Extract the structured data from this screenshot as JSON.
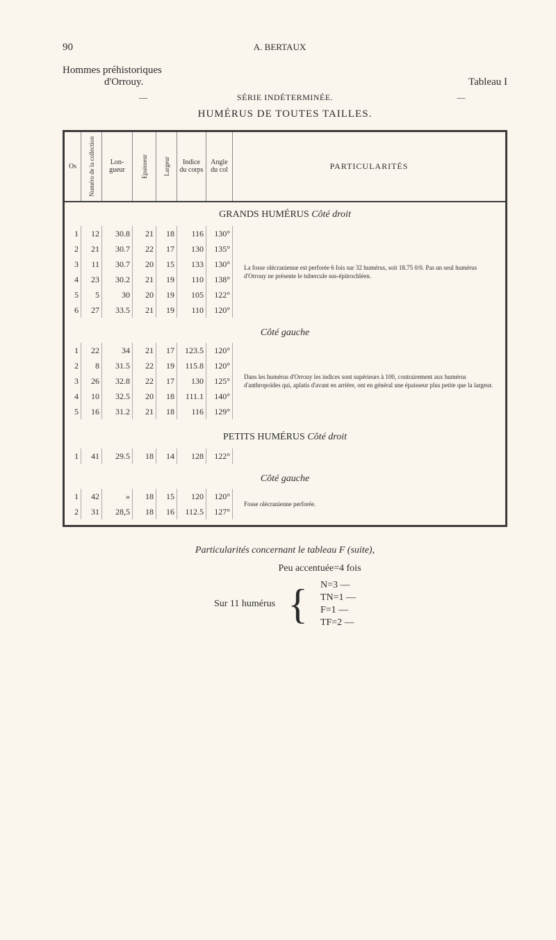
{
  "page_number": "90",
  "author": "A. BERTAUX",
  "title_group": "Hommes préhistoriques",
  "title_place": "d'Orrouy.",
  "tableau": "Tableau I",
  "series": "SÉRIE INDÉTERMINÉE.",
  "main_title": "HUMÉRUS DE TOUTES TAILLES.",
  "headers": {
    "os": "Os",
    "numero": "Numéro de la collection",
    "longueur": "Lon- gueur",
    "epaisseur": "Epaisseur",
    "largeur": "Largeur",
    "indice": "Indice du corps",
    "angle": "Angle du col",
    "particularites": "PARTICULARITÉS"
  },
  "sections": [
    {
      "title": "GRANDS HUMÉRUS",
      "side": "Côté droit",
      "rows": [
        {
          "os": "1",
          "num": "12",
          "lon": "30.8",
          "epa": "21",
          "lar": "18",
          "ind": "116",
          "ang": "130°"
        },
        {
          "os": "2",
          "num": "21",
          "lon": "30.7",
          "epa": "22",
          "lar": "17",
          "ind": "130",
          "ang": "135°"
        },
        {
          "os": "3",
          "num": "11",
          "lon": "30.7",
          "epa": "20",
          "lar": "15",
          "ind": "133",
          "ang": "130°"
        },
        {
          "os": "4",
          "num": "23",
          "lon": "30.2",
          "epa": "21",
          "lar": "19",
          "ind": "110",
          "ang": "138°"
        },
        {
          "os": "5",
          "num": "5",
          "lon": "30",
          "epa": "20",
          "lar": "19",
          "ind": "105",
          "ang": "122°"
        },
        {
          "os": "6",
          "num": "27",
          "lon": "33.5",
          "epa": "21",
          "lar": "19",
          "ind": "110",
          "ang": "120°"
        }
      ],
      "remark": "La fosse olécranienne est perforée 6 fois sur 32 humérus, soit 18.75 0/0.\nPas un seul humérus d'Orrouy ne présente le tubercule sus-épitrochléen."
    },
    {
      "title": "",
      "side": "Côté gauche",
      "rows": [
        {
          "os": "1",
          "num": "22",
          "lon": "34",
          "epa": "21",
          "lar": "17",
          "ind": "123.5",
          "ang": "120°"
        },
        {
          "os": "2",
          "num": "8",
          "lon": "31.5",
          "epa": "22",
          "lar": "19",
          "ind": "115.8",
          "ang": "120°"
        },
        {
          "os": "3",
          "num": "26",
          "lon": "32.8",
          "epa": "22",
          "lar": "17",
          "ind": "130",
          "ang": "125°"
        },
        {
          "os": "4",
          "num": "10",
          "lon": "32.5",
          "epa": "20",
          "lar": "18",
          "ind": "111.1",
          "ang": "140°"
        },
        {
          "os": "5",
          "num": "16",
          "lon": "31.2",
          "epa": "21",
          "lar": "18",
          "ind": "116",
          "ang": "129°"
        }
      ],
      "remark": "Dans les humérus d'Orrouy les indices sont supérieurs à 100, contrairement aux humérus d'anthropoïdes qui, aplatis d'avant en arrière, ont en général une épaisseur plus petite que la largeur."
    },
    {
      "title": "PETITS HUMÉRUS",
      "side": "Côté droit",
      "rows": [
        {
          "os": "1",
          "num": "41",
          "lon": "29.5",
          "epa": "18",
          "lar": "14",
          "ind": "128",
          "ang": "122°"
        }
      ],
      "remark": ""
    },
    {
      "title": "",
      "side": "Côté gauche",
      "rows": [
        {
          "os": "1",
          "num": "42",
          "lon": "»",
          "epa": "18",
          "lar": "15",
          "ind": "120",
          "ang": "120°"
        },
        {
          "os": "2",
          "num": "31",
          "lon": "28,5",
          "epa": "18",
          "lar": "16",
          "ind": "112.5",
          "ang": "127°"
        }
      ],
      "remark": "Fosse olécranienne perforée."
    }
  ],
  "bottom": {
    "title": "Particularités concernant le tableau F (suite),",
    "line1": "Peu accentuée=4 fois",
    "label": "Sur 11 humérus",
    "items": [
      "N=3  —",
      "TN=1  —",
      "F=1  —",
      "TF=2  —"
    ]
  },
  "colors": {
    "background": "#faf6ee",
    "text": "#2a2a2a",
    "border": "#3a3a3a"
  }
}
